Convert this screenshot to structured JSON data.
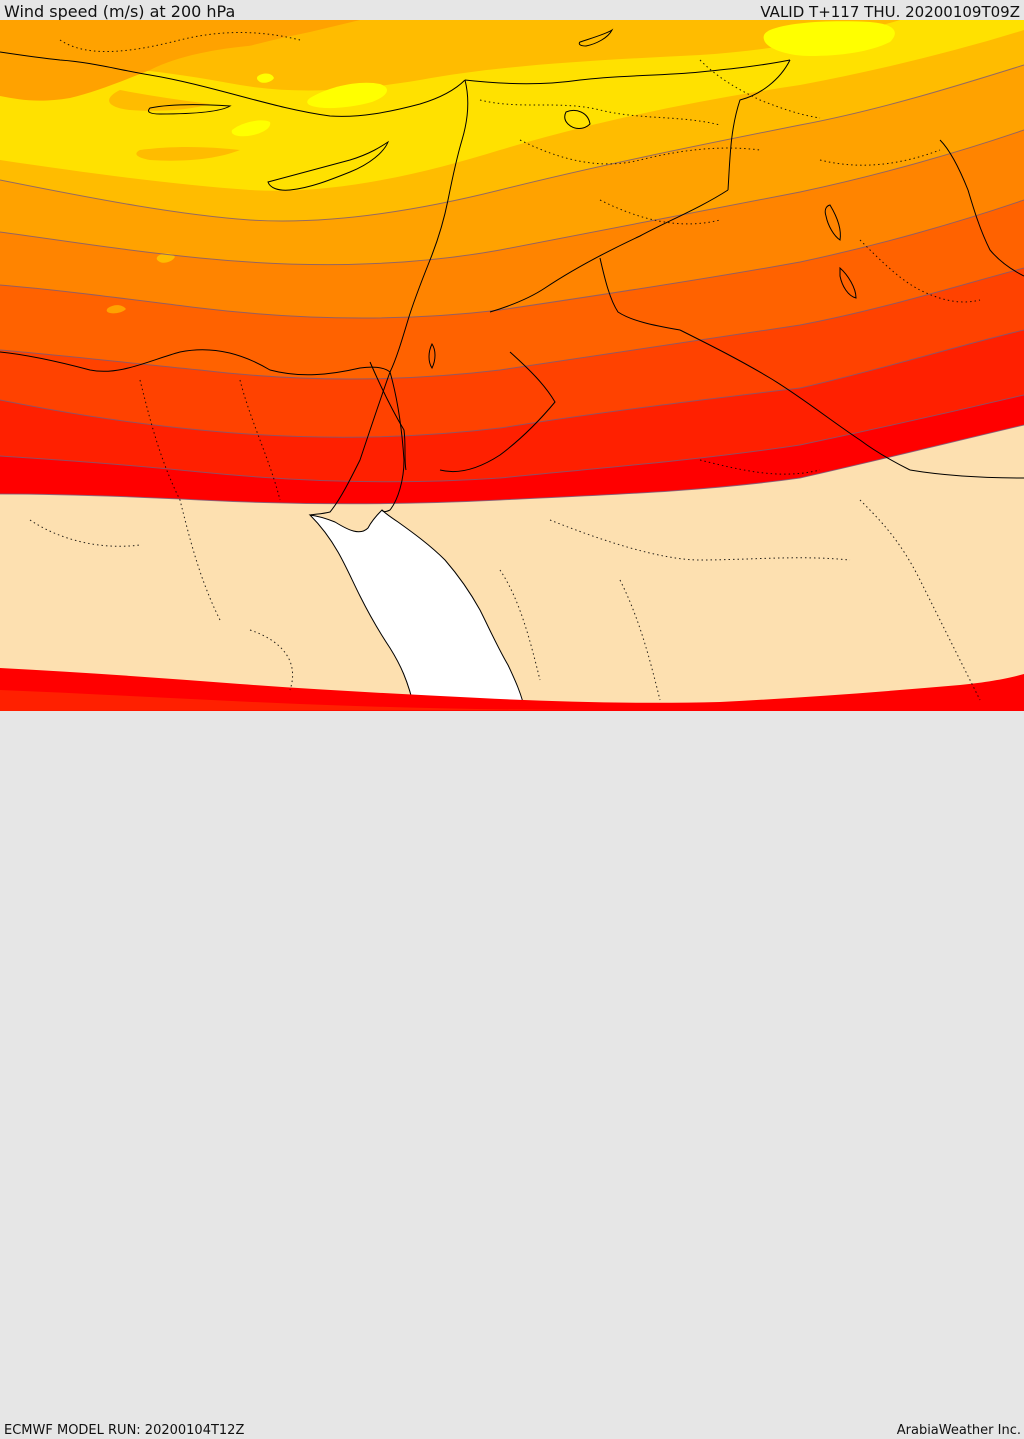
{
  "header": {
    "title": "Wind speed (m/s) at 200 hPa",
    "valid": "VALID T+117 THU. 20200109T09Z"
  },
  "footer": {
    "model_run": "ECMWF MODEL RUN: 20200104T12Z",
    "credit": "ArabiaWeather Inc."
  },
  "colors": {
    "background": "#e6e6e6",
    "below_threshold": "#fde0b0",
    "sea": "#ffffff",
    "bands": [
      "#ff0000",
      "#ff2000",
      "#ff4200",
      "#ff6200",
      "#ff8400",
      "#ffa200",
      "#ffbc00",
      "#ffe100",
      "#ffff00"
    ]
  },
  "icons": {
    "borders": "country-border-lines",
    "coast": "coastline"
  }
}
